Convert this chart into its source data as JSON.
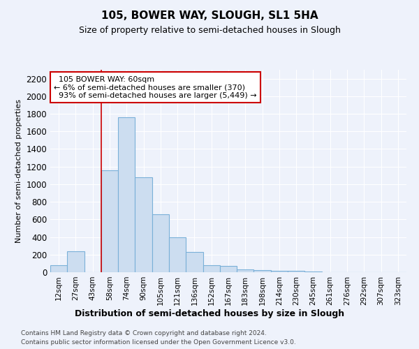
{
  "title1": "105, BOWER WAY, SLOUGH, SL1 5HA",
  "title2": "Size of property relative to semi-detached houses in Slough",
  "xlabel": "Distribution of semi-detached houses by size in Slough",
  "ylabel": "Number of semi-detached properties",
  "categories": [
    "12sqm",
    "27sqm",
    "43sqm",
    "58sqm",
    "74sqm",
    "90sqm",
    "105sqm",
    "121sqm",
    "136sqm",
    "152sqm",
    "167sqm",
    "183sqm",
    "198sqm",
    "214sqm",
    "230sqm",
    "245sqm",
    "261sqm",
    "276sqm",
    "292sqm",
    "307sqm",
    "323sqm"
  ],
  "values": [
    80,
    240,
    0,
    1160,
    1760,
    1080,
    660,
    400,
    230,
    80,
    75,
    35,
    20,
    15,
    18,
    5,
    0,
    0,
    0,
    0,
    0
  ],
  "bar_color": "#ccddf0",
  "bar_edge_color": "#7ab0d8",
  "subject_line_index": 3,
  "subject_sqm": 60,
  "subject_label": "105 BOWER WAY: 60sqm",
  "pct_smaller": 6,
  "count_smaller": 370,
  "pct_larger": 93,
  "count_larger": "5,449",
  "annotation_box_color": "#cc0000",
  "ylim": [
    0,
    2300
  ],
  "yticks": [
    0,
    200,
    400,
    600,
    800,
    1000,
    1200,
    1400,
    1600,
    1800,
    2000,
    2200
  ],
  "footnote1": "Contains HM Land Registry data © Crown copyright and database right 2024.",
  "footnote2": "Contains public sector information licensed under the Open Government Licence v3.0.",
  "bg_color": "#eef2fb",
  "plot_bg_color": "#eef2fb",
  "grid_color": "#ffffff",
  "title1_fontsize": 11,
  "title2_fontsize": 9
}
